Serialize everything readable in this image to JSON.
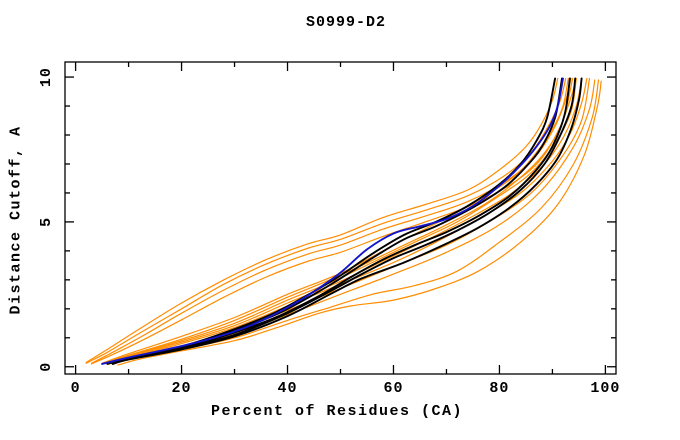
{
  "window": {
    "background": "#ffffff"
  },
  "chart_data": {
    "type": "line",
    "title": "S0999-D2",
    "xlabel": "Percent of Residues (CA)",
    "ylabel": "Distance Cutoff, A",
    "xlim": [
      0,
      100
    ],
    "ylim": [
      0,
      10
    ],
    "frame_xlim": [
      -2,
      102
    ],
    "frame_ylim": [
      -0.25,
      10.52
    ],
    "x_major_ticks": [
      0,
      20,
      40,
      60,
      80,
      100
    ],
    "x_minor_ticks": [
      10,
      30,
      50,
      70,
      90
    ],
    "y_major_ticks": [
      0,
      5,
      10
    ],
    "y_minor_ticks": [
      1,
      2,
      3,
      4,
      6,
      7,
      8,
      9
    ],
    "grid": false,
    "legend": false,
    "colors": {
      "orange": "#ff8c00",
      "black": "#000000",
      "blue": "#1414cc"
    },
    "series": [
      {
        "name": "orange-fast-1",
        "color": "orange",
        "width": 1.2,
        "points": [
          [
            2,
            0.15
          ],
          [
            6,
            0.6
          ],
          [
            12,
            1.3
          ],
          [
            20,
            2.2
          ],
          [
            28,
            3.0
          ],
          [
            36,
            3.7
          ],
          [
            44,
            4.25
          ],
          [
            50,
            4.55
          ],
          [
            58,
            5.15
          ],
          [
            66,
            5.6
          ],
          [
            74,
            6.1
          ],
          [
            80,
            6.8
          ],
          [
            85,
            7.6
          ],
          [
            88,
            8.4
          ],
          [
            90,
            9.2
          ],
          [
            91,
            9.95
          ]
        ]
      },
      {
        "name": "orange-fast-2",
        "color": "orange",
        "width": 1.2,
        "points": [
          [
            2,
            0.12
          ],
          [
            6,
            0.5
          ],
          [
            12,
            1.15
          ],
          [
            20,
            2.0
          ],
          [
            28,
            2.85
          ],
          [
            36,
            3.55
          ],
          [
            44,
            4.1
          ],
          [
            50,
            4.4
          ],
          [
            58,
            4.95
          ],
          [
            66,
            5.4
          ],
          [
            74,
            5.9
          ],
          [
            81,
            6.6
          ],
          [
            86,
            7.4
          ],
          [
            89.5,
            8.4
          ],
          [
            91.5,
            9.2
          ],
          [
            92.5,
            9.95
          ]
        ]
      },
      {
        "name": "orange-fast-3",
        "color": "orange",
        "width": 1.2,
        "points": [
          [
            3,
            0.12
          ],
          [
            7,
            0.5
          ],
          [
            13,
            1.1
          ],
          [
            20,
            1.85
          ],
          [
            28,
            2.65
          ],
          [
            36,
            3.35
          ],
          [
            44,
            3.9
          ],
          [
            50,
            4.2
          ],
          [
            58,
            4.75
          ],
          [
            66,
            5.2
          ],
          [
            74,
            5.7
          ],
          [
            82,
            6.5
          ],
          [
            87,
            7.3
          ],
          [
            90.5,
            8.3
          ],
          [
            92.5,
            9.2
          ],
          [
            93.5,
            9.95
          ]
        ]
      },
      {
        "name": "orange-fast-4",
        "color": "orange",
        "width": 1.2,
        "points": [
          [
            3,
            0.1
          ],
          [
            7,
            0.42
          ],
          [
            13,
            0.95
          ],
          [
            20,
            1.62
          ],
          [
            28,
            2.4
          ],
          [
            36,
            3.1
          ],
          [
            44,
            3.65
          ],
          [
            50,
            3.95
          ],
          [
            58,
            4.5
          ],
          [
            66,
            5.0
          ],
          [
            75,
            5.6
          ],
          [
            83,
            6.4
          ],
          [
            88,
            7.2
          ],
          [
            91.5,
            8.3
          ],
          [
            93.5,
            9.3
          ],
          [
            94.5,
            9.95
          ]
        ]
      },
      {
        "name": "orange-1",
        "color": "orange",
        "width": 1.2,
        "points": [
          [
            5,
            0.12
          ],
          [
            10,
            0.45
          ],
          [
            20,
            1.05
          ],
          [
            30,
            1.7
          ],
          [
            40,
            2.5
          ],
          [
            47,
            3.0
          ],
          [
            52,
            3.4
          ],
          [
            60,
            4.2
          ],
          [
            68,
            4.95
          ],
          [
            76,
            5.75
          ],
          [
            83,
            6.6
          ],
          [
            87,
            7.4
          ],
          [
            90,
            8.2
          ],
          [
            92,
            9.0
          ],
          [
            93,
            9.95
          ]
        ]
      },
      {
        "name": "orange-2",
        "color": "orange",
        "width": 1.2,
        "points": [
          [
            5,
            0.12
          ],
          [
            10,
            0.4
          ],
          [
            20,
            0.95
          ],
          [
            30,
            1.6
          ],
          [
            40,
            2.4
          ],
          [
            48,
            3.0
          ],
          [
            54,
            3.5
          ],
          [
            62,
            4.2
          ],
          [
            70,
            4.9
          ],
          [
            78,
            5.7
          ],
          [
            85,
            6.7
          ],
          [
            89,
            7.5
          ],
          [
            92,
            8.5
          ],
          [
            93.8,
            9.95
          ]
        ]
      },
      {
        "name": "orange-3",
        "color": "orange",
        "width": 1.2,
        "points": [
          [
            5,
            0.1
          ],
          [
            10,
            0.38
          ],
          [
            20,
            0.9
          ],
          [
            30,
            1.5
          ],
          [
            40,
            2.3
          ],
          [
            48,
            2.9
          ],
          [
            56,
            3.6
          ],
          [
            64,
            4.3
          ],
          [
            72,
            5.0
          ],
          [
            80,
            5.9
          ],
          [
            86,
            6.7
          ],
          [
            90.5,
            7.7
          ],
          [
            93.5,
            8.8
          ],
          [
            94.5,
            9.95
          ]
        ]
      },
      {
        "name": "orange-4",
        "color": "orange",
        "width": 1.2,
        "points": [
          [
            6,
            0.1
          ],
          [
            10,
            0.35
          ],
          [
            20,
            0.85
          ],
          [
            30,
            1.42
          ],
          [
            40,
            2.2
          ],
          [
            50,
            2.95
          ],
          [
            58,
            3.65
          ],
          [
            66,
            4.35
          ],
          [
            74,
            5.1
          ],
          [
            82,
            5.95
          ],
          [
            88,
            6.9
          ],
          [
            92,
            7.9
          ],
          [
            94.5,
            9.0
          ],
          [
            95.5,
            9.95
          ]
        ]
      },
      {
        "name": "orange-5",
        "color": "orange",
        "width": 1.2,
        "points": [
          [
            6,
            0.1
          ],
          [
            10,
            0.32
          ],
          [
            20,
            0.8
          ],
          [
            30,
            1.35
          ],
          [
            40,
            2.1
          ],
          [
            50,
            2.85
          ],
          [
            60,
            3.6
          ],
          [
            68,
            4.3
          ],
          [
            76,
            5.1
          ],
          [
            84,
            6.0
          ],
          [
            90,
            7.1
          ],
          [
            93.5,
            8.1
          ],
          [
            95.5,
            9.1
          ],
          [
            96.5,
            9.95
          ]
        ]
      },
      {
        "name": "orange-6",
        "color": "orange",
        "width": 1.2,
        "points": [
          [
            6,
            0.08
          ],
          [
            10,
            0.3
          ],
          [
            20,
            0.72
          ],
          [
            30,
            1.25
          ],
          [
            40,
            1.95
          ],
          [
            50,
            2.7
          ],
          [
            60,
            3.45
          ],
          [
            70,
            4.2
          ],
          [
            78,
            5.0
          ],
          [
            86,
            6.0
          ],
          [
            92,
            7.3
          ],
          [
            95.5,
            8.5
          ],
          [
            97,
            9.95
          ]
        ]
      },
      {
        "name": "orange-7",
        "color": "orange",
        "width": 1.2,
        "points": [
          [
            7,
            0.08
          ],
          [
            10,
            0.26
          ],
          [
            20,
            0.66
          ],
          [
            30,
            1.12
          ],
          [
            40,
            1.8
          ],
          [
            50,
            2.5
          ],
          [
            60,
            3.2
          ],
          [
            70,
            3.95
          ],
          [
            80,
            4.9
          ],
          [
            88,
            6.1
          ],
          [
            94,
            7.6
          ],
          [
            97,
            8.9
          ],
          [
            98,
            9.9
          ]
        ]
      },
      {
        "name": "orange-8",
        "color": "orange",
        "width": 1.2,
        "points": [
          [
            7,
            0.08
          ],
          [
            10,
            0.24
          ],
          [
            20,
            0.6
          ],
          [
            30,
            1.0
          ],
          [
            40,
            1.6
          ],
          [
            48,
            2.05
          ],
          [
            56,
            2.5
          ],
          [
            64,
            2.8
          ],
          [
            72,
            3.3
          ],
          [
            80,
            4.3
          ],
          [
            88,
            5.5
          ],
          [
            94,
            7.0
          ],
          [
            97.5,
            8.6
          ],
          [
            98.7,
            9.9
          ]
        ]
      },
      {
        "name": "orange-9",
        "color": "orange",
        "width": 1.2,
        "points": [
          [
            8,
            0.06
          ],
          [
            12,
            0.26
          ],
          [
            20,
            0.55
          ],
          [
            30,
            0.9
          ],
          [
            38,
            1.35
          ],
          [
            46,
            1.85
          ],
          [
            52,
            2.1
          ],
          [
            60,
            2.3
          ],
          [
            68,
            2.7
          ],
          [
            76,
            3.3
          ],
          [
            84,
            4.3
          ],
          [
            91,
            5.6
          ],
          [
            96,
            7.3
          ],
          [
            98.5,
            9.0
          ],
          [
            99.2,
            9.85
          ]
        ]
      },
      {
        "name": "black-1",
        "color": "black",
        "width": 1.9,
        "points": [
          [
            6,
            0.12
          ],
          [
            10,
            0.3
          ],
          [
            20,
            0.7
          ],
          [
            30,
            1.3
          ],
          [
            38,
            1.9
          ],
          [
            45,
            2.6
          ],
          [
            50,
            3.15
          ],
          [
            56,
            3.9
          ],
          [
            62,
            4.55
          ],
          [
            68,
            5.0
          ],
          [
            74,
            5.55
          ],
          [
            80,
            6.3
          ],
          [
            84,
            7.0
          ],
          [
            87,
            7.8
          ],
          [
            89,
            8.6
          ],
          [
            90.5,
            9.95
          ]
        ]
      },
      {
        "name": "black-2",
        "color": "black",
        "width": 1.9,
        "points": [
          [
            6,
            0.12
          ],
          [
            10,
            0.3
          ],
          [
            20,
            0.68
          ],
          [
            30,
            1.25
          ],
          [
            38,
            1.82
          ],
          [
            45,
            2.5
          ],
          [
            50,
            3.05
          ],
          [
            56,
            3.75
          ],
          [
            62,
            4.4
          ],
          [
            68,
            4.85
          ],
          [
            75,
            5.5
          ],
          [
            81,
            6.2
          ],
          [
            85,
            6.9
          ],
          [
            88,
            7.6
          ],
          [
            90.5,
            8.6
          ],
          [
            91.8,
            9.95
          ]
        ]
      },
      {
        "name": "black-3",
        "color": "black",
        "width": 1.9,
        "points": [
          [
            6,
            0.1
          ],
          [
            10,
            0.28
          ],
          [
            20,
            0.64
          ],
          [
            30,
            1.18
          ],
          [
            38,
            1.72
          ],
          [
            46,
            2.45
          ],
          [
            52,
            3.1
          ],
          [
            58,
            3.7
          ],
          [
            64,
            4.2
          ],
          [
            70,
            4.65
          ],
          [
            76,
            5.2
          ],
          [
            82,
            5.9
          ],
          [
            87,
            6.8
          ],
          [
            90,
            7.6
          ],
          [
            92.3,
            8.7
          ],
          [
            93.3,
            9.95
          ]
        ]
      },
      {
        "name": "black-4",
        "color": "black",
        "width": 1.9,
        "points": [
          [
            7,
            0.1
          ],
          [
            10,
            0.26
          ],
          [
            20,
            0.62
          ],
          [
            30,
            1.1
          ],
          [
            40,
            1.85
          ],
          [
            48,
            2.6
          ],
          [
            54,
            3.2
          ],
          [
            60,
            3.75
          ],
          [
            66,
            4.2
          ],
          [
            72,
            4.7
          ],
          [
            78,
            5.3
          ],
          [
            84,
            6.1
          ],
          [
            88.5,
            7.0
          ],
          [
            91.5,
            8.0
          ],
          [
            93.6,
            9.0
          ],
          [
            94.3,
            9.95
          ]
        ]
      },
      {
        "name": "black-5",
        "color": "black",
        "width": 1.9,
        "points": [
          [
            7,
            0.1
          ],
          [
            10,
            0.25
          ],
          [
            20,
            0.6
          ],
          [
            30,
            1.05
          ],
          [
            40,
            1.75
          ],
          [
            48,
            2.5
          ],
          [
            54,
            3.05
          ],
          [
            62,
            3.6
          ],
          [
            70,
            4.25
          ],
          [
            76,
            4.8
          ],
          [
            82,
            5.5
          ],
          [
            87,
            6.3
          ],
          [
            91,
            7.2
          ],
          [
            93.5,
            8.2
          ],
          [
            95,
            9.2
          ],
          [
            95.5,
            9.95
          ]
        ]
      },
      {
        "name": "blue-1",
        "color": "blue",
        "width": 1.9,
        "points": [
          [
            5,
            0.1
          ],
          [
            10,
            0.32
          ],
          [
            16,
            0.55
          ],
          [
            22,
            0.8
          ],
          [
            28,
            1.1
          ],
          [
            34,
            1.5
          ],
          [
            40,
            2.05
          ],
          [
            45,
            2.6
          ],
          [
            50,
            3.25
          ],
          [
            55,
            4.05
          ],
          [
            60,
            4.6
          ],
          [
            65,
            4.85
          ],
          [
            70,
            5.1
          ],
          [
            75,
            5.55
          ],
          [
            80,
            6.25
          ],
          [
            84,
            6.95
          ],
          [
            87,
            7.6
          ],
          [
            89.5,
            8.3
          ],
          [
            91,
            9.0
          ],
          [
            92,
            9.95
          ]
        ]
      }
    ]
  }
}
